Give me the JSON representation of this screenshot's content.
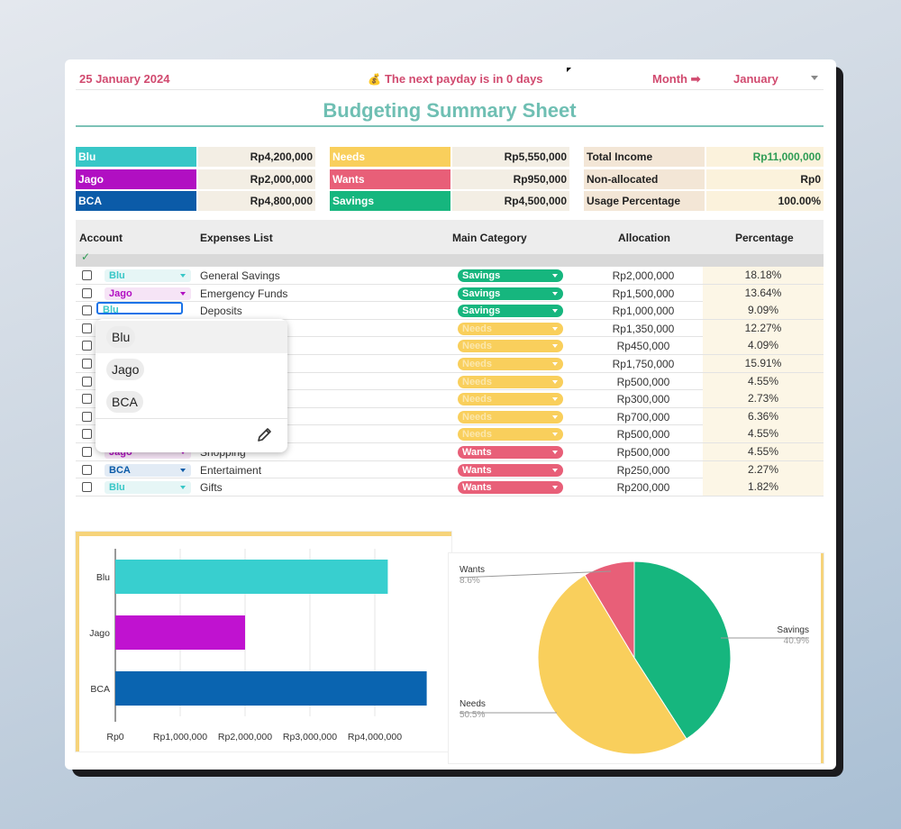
{
  "header": {
    "date": "25 January 2024",
    "payday_icon": "moneybag-icon",
    "payday_text": "The next payday is in 0 days",
    "month_label": "Month ➡",
    "month_value": "January"
  },
  "title": "Budgeting Summary Sheet",
  "accounts": [
    {
      "name": "Blu",
      "amount": "Rp4,200,000",
      "color": "#38c7c7"
    },
    {
      "name": "Jago",
      "amount": "Rp2,000,000",
      "color": "#b10fc2"
    },
    {
      "name": "BCA",
      "amount": "Rp4,800,000",
      "color": "#0b5ba8"
    }
  ],
  "categories": [
    {
      "name": "Needs",
      "amount": "Rp5,550,000",
      "color": "#f9cf5c"
    },
    {
      "name": "Wants",
      "amount": "Rp950,000",
      "color": "#e85f78"
    },
    {
      "name": "Savings",
      "amount": "Rp4,500,000",
      "color": "#16b67e"
    }
  ],
  "totals": [
    {
      "label": "Total Income",
      "value": "Rp11,000,000"
    },
    {
      "label": "Non-allocated",
      "value": "Rp0"
    },
    {
      "label": "Usage Percentage",
      "value": "100.00%"
    }
  ],
  "table": {
    "headers": [
      "Account",
      "Expenses List",
      "Main Category",
      "Allocation",
      "Percentage"
    ],
    "check_mark": "✓",
    "rows": [
      {
        "account": "Blu",
        "expense": "General Savings",
        "category": "Savings",
        "allocation": "Rp2,000,000",
        "percentage": "18.18%"
      },
      {
        "account": "Jago",
        "expense": "Emergency Funds",
        "category": "Savings",
        "allocation": "Rp1,500,000",
        "percentage": "13.64%"
      },
      {
        "account": "Blu",
        "expense": "Deposits",
        "category": "Savings",
        "allocation": "Rp1,000,000",
        "percentage": "9.09%"
      },
      {
        "account": "",
        "expense": "",
        "category": "Needs",
        "allocation": "Rp1,350,000",
        "percentage": "12.27%"
      },
      {
        "account": "",
        "expense": "",
        "category": "Needs",
        "allocation": "Rp450,000",
        "percentage": "4.09%"
      },
      {
        "account": "",
        "expense": "",
        "category": "Needs",
        "allocation": "Rp1,750,000",
        "percentage": "15.91%"
      },
      {
        "account": "",
        "expense": "",
        "category": "Needs",
        "allocation": "Rp500,000",
        "percentage": "4.55%"
      },
      {
        "account": "",
        "expense": "",
        "category": "Needs",
        "allocation": "Rp300,000",
        "percentage": "2.73%"
      },
      {
        "account": "",
        "expense": "",
        "category": "Needs",
        "allocation": "Rp700,000",
        "percentage": "6.36%"
      },
      {
        "account": "",
        "expense": "",
        "category": "Needs",
        "allocation": "Rp500,000",
        "percentage": "4.55%"
      },
      {
        "account": "Jago",
        "expense": "Shopping",
        "category": "Wants",
        "allocation": "Rp500,000",
        "percentage": "4.55%"
      },
      {
        "account": "BCA",
        "expense": "Entertaiment",
        "category": "Wants",
        "allocation": "Rp250,000",
        "percentage": "2.27%"
      },
      {
        "account": "Blu",
        "expense": "Gifts",
        "category": "Wants",
        "allocation": "Rp200,000",
        "percentage": "1.82%"
      }
    ]
  },
  "dropdown": {
    "options": [
      "Blu",
      "Jago",
      "BCA"
    ],
    "selected": "Blu",
    "edit_icon": "pencil-icon"
  },
  "chart_data": [
    {
      "type": "bar",
      "orientation": "horizontal",
      "categories": [
        "Blu",
        "Jago",
        "BCA"
      ],
      "values": [
        4200000,
        2000000,
        4800000
      ],
      "colors": [
        "#38cfcf",
        "#c012d0",
        "#0a64b0"
      ],
      "xlim": [
        0,
        5000000
      ],
      "x_ticks": [
        "Rp0",
        "Rp1,000,000",
        "Rp2,000,000",
        "Rp3,000,000",
        "Rp4,000,000"
      ],
      "x_tick_values": [
        0,
        1000000,
        2000000,
        3000000,
        4000000
      ],
      "grid": true
    },
    {
      "type": "pie",
      "slices": [
        {
          "label": "Savings",
          "value": 40.9,
          "percent": "40.9%",
          "color": "#16b67e"
        },
        {
          "label": "Needs",
          "value": 50.5,
          "percent": "50.5%",
          "color": "#f9cf5c"
        },
        {
          "label": "Wants",
          "value": 8.6,
          "percent": "8.6%",
          "color": "#e85f78"
        }
      ]
    }
  ]
}
